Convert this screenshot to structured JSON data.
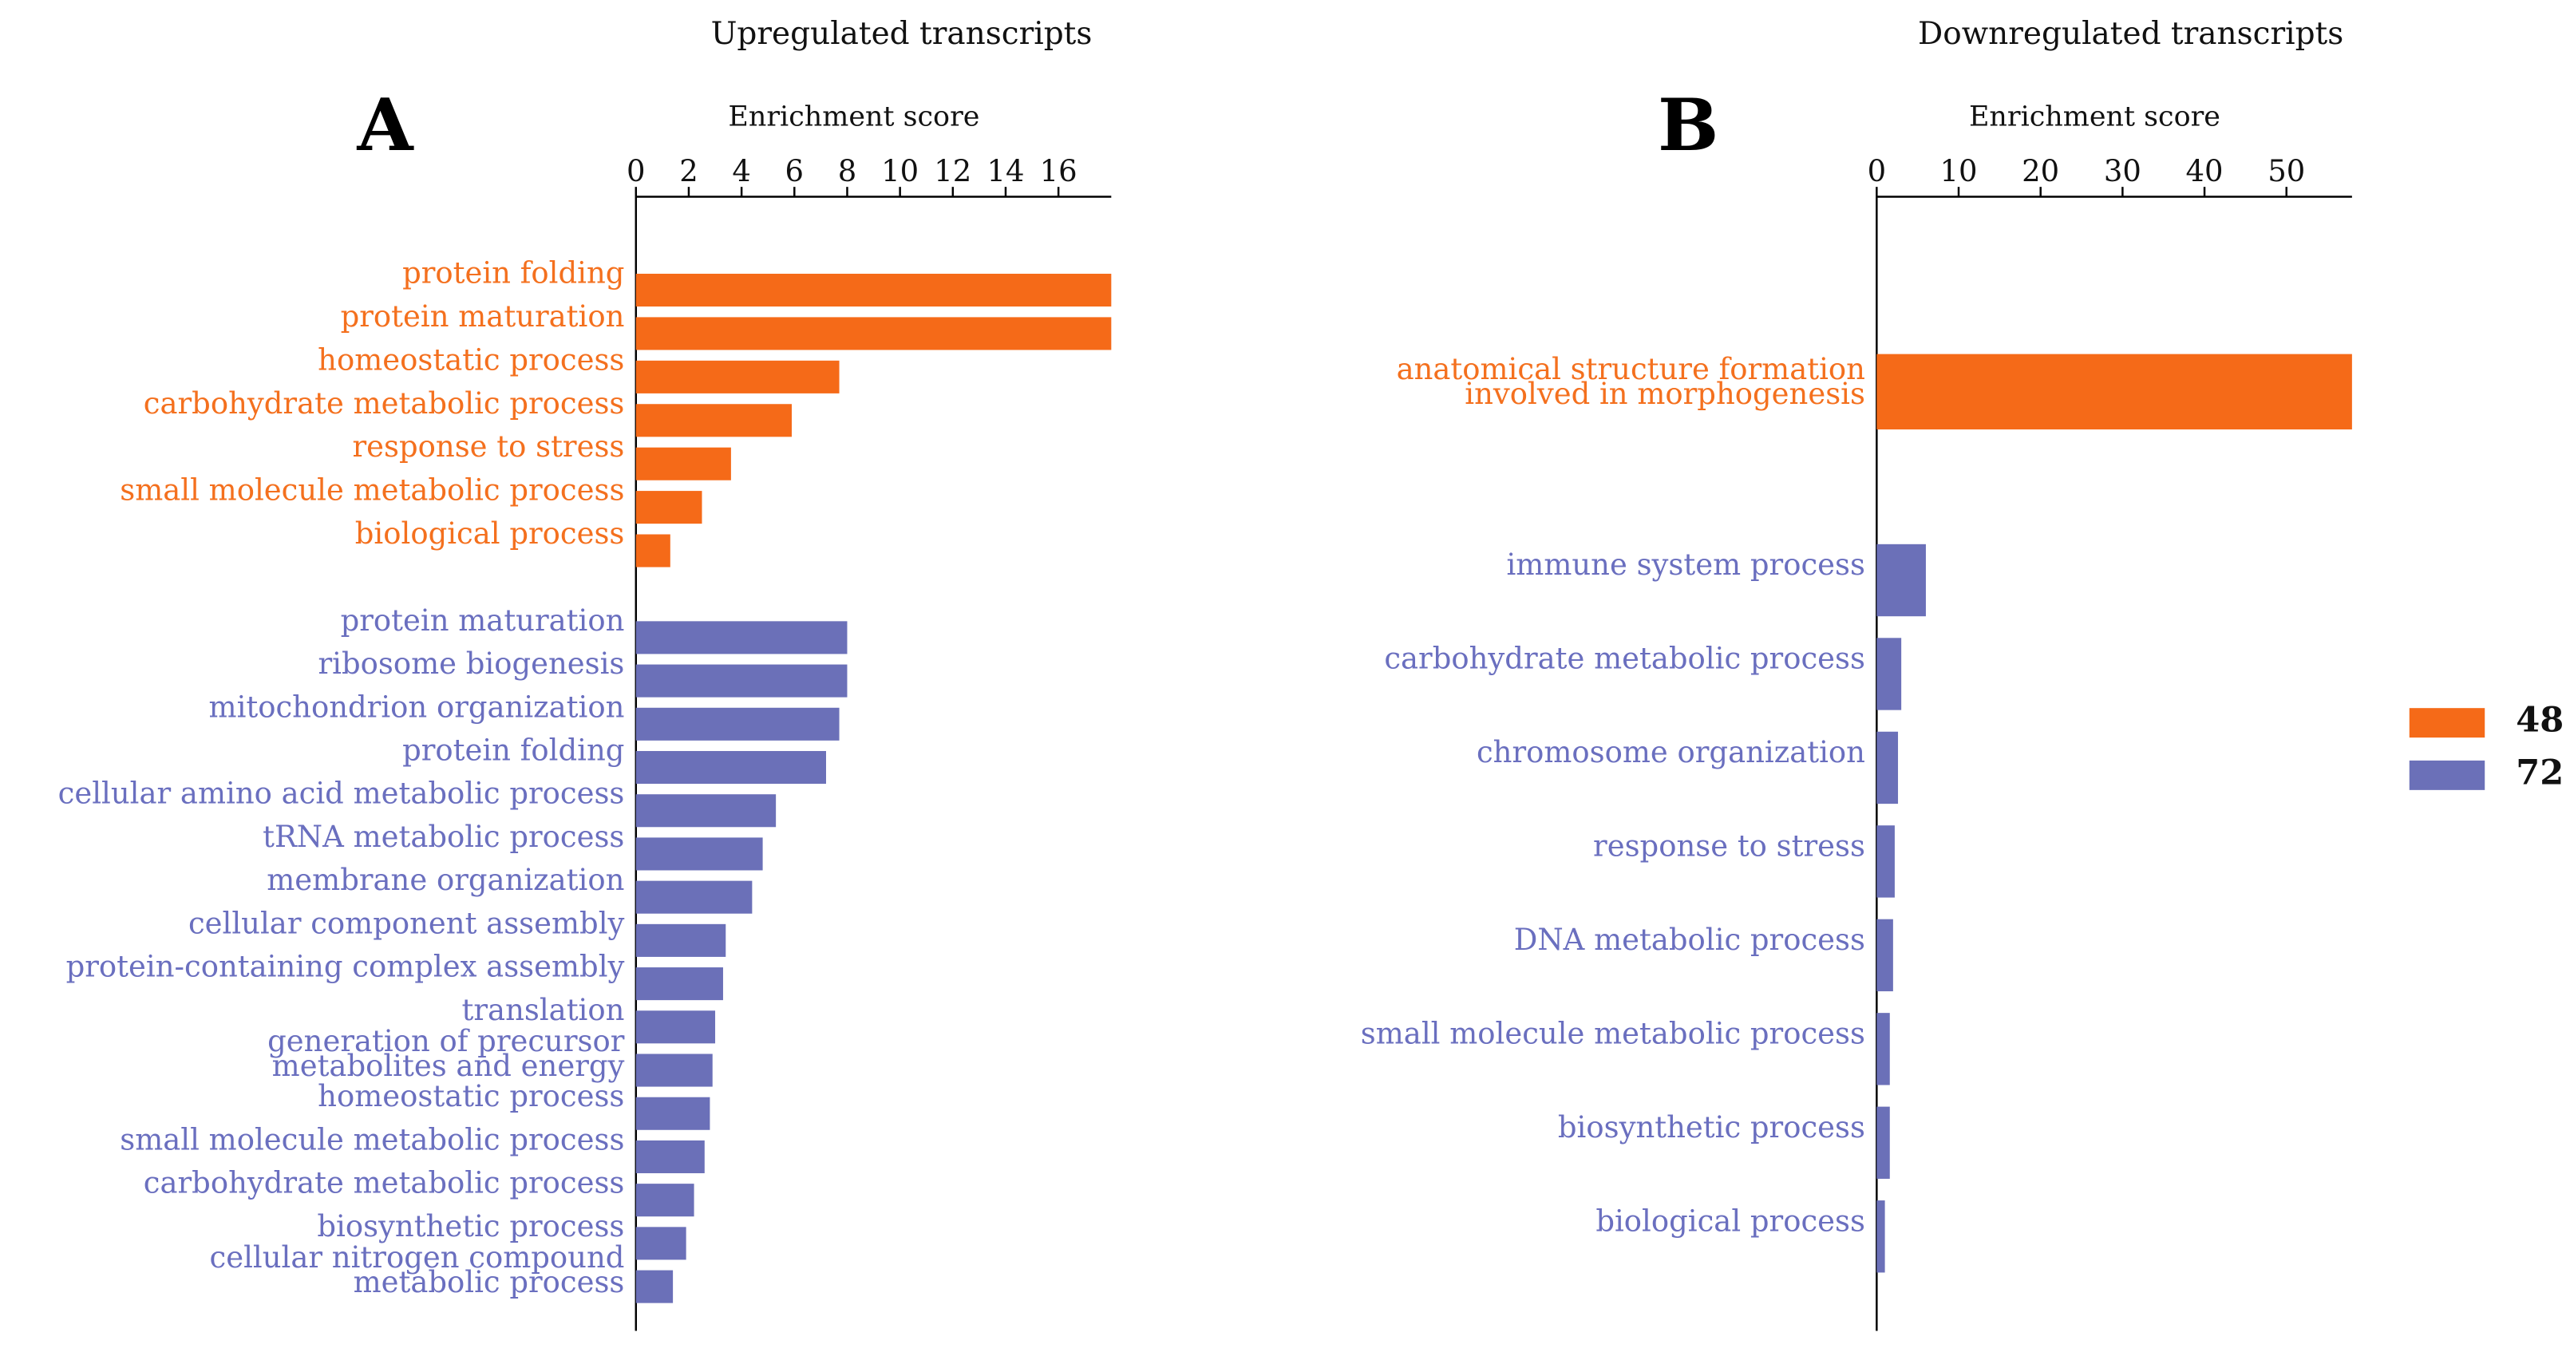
{
  "chart_data": [
    {
      "type": "hbar",
      "title": "Upregulated transcripts",
      "panel_label": "A",
      "xlabel": "Enrichment score",
      "xlim": [
        0,
        18
      ],
      "xticks": [
        0,
        2,
        4,
        6,
        8,
        10,
        12,
        14,
        16
      ],
      "series": [
        {
          "color": "#f56a18",
          "label_color": "#f4701e",
          "categories": [
            "protein folding",
            "protein maturation",
            "homeostatic process",
            "carbohydrate metabolic process",
            "response to stress",
            "small molecule metabolic process",
            "biological process"
          ],
          "values": [
            18,
            18,
            7.7,
            5.9,
            3.6,
            2.5,
            1.3
          ]
        },
        {
          "color": "#6b70b8",
          "label_color": "#6a6fbf",
          "categories": [
            "protein maturation",
            "ribosome biogenesis",
            "mitochondrion organization",
            "protein folding",
            "cellular amino acid metabolic process",
            "tRNA metabolic process",
            "membrane organization",
            "cellular component assembly",
            "protein-containing complex assembly",
            "translation",
            "generation of precursor\nmetabolites and energy",
            "homeostatic process",
            "small molecule metabolic process",
            "carbohydrate metabolic process",
            "biosynthetic process",
            "cellular nitrogen compound\nmetabolic process"
          ],
          "values": [
            8.0,
            8.0,
            7.7,
            7.2,
            5.3,
            4.8,
            4.4,
            3.4,
            3.3,
            3.0,
            2.9,
            2.8,
            2.6,
            2.2,
            1.9,
            1.4
          ]
        }
      ]
    },
    {
      "type": "hbar",
      "title": "Downregulated transcripts",
      "panel_label": "B",
      "xlabel": "Enrichment score",
      "xlim": [
        0,
        58
      ],
      "xticks": [
        0,
        10,
        20,
        30,
        40,
        50
      ],
      "series": [
        {
          "name": "48",
          "color": "#f56a18",
          "label_color": "#f4701e",
          "categories": [
            "anatomical structure formation\ninvolved in morphogenesis"
          ],
          "values": [
            58
          ]
        },
        {
          "name": "72",
          "color": "#6b70b8",
          "label_color": "#6a6fbf",
          "categories": [
            "immune system process",
            "carbohydrate metabolic process",
            "chromosome organization",
            "response to stress",
            "DNA metabolic process",
            "small molecule metabolic process",
            "biosynthetic process",
            "biological process"
          ],
          "values": [
            6,
            3,
            2.6,
            2.2,
            2,
            1.6,
            1.6,
            1
          ]
        }
      ]
    }
  ]
}
